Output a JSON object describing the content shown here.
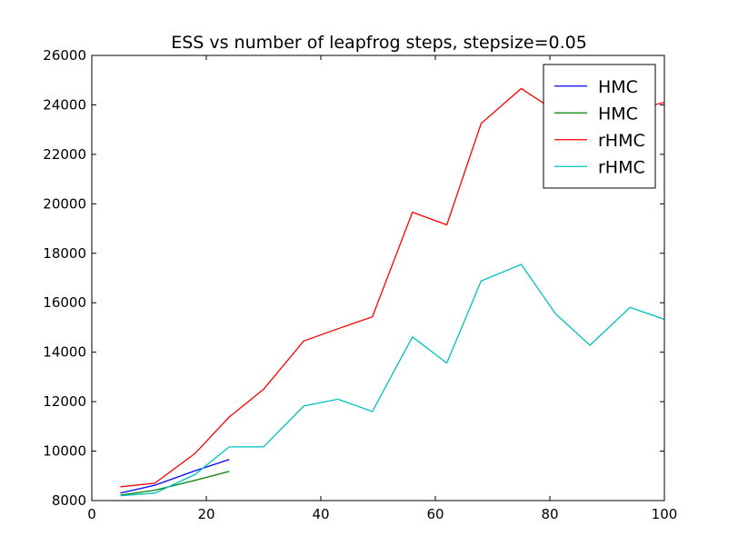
{
  "chart_data": {
    "type": "line",
    "title": "ESS vs number of leapfrog steps, stepsize=0.05",
    "xlabel": "",
    "ylabel": "",
    "xlim": [
      0,
      100
    ],
    "ylim": [
      8000,
      26000
    ],
    "xticks": [
      0,
      20,
      40,
      60,
      80,
      100
    ],
    "yticks": [
      8000,
      10000,
      12000,
      14000,
      16000,
      18000,
      20000,
      22000,
      24000,
      26000
    ],
    "grid": false,
    "legend_position": "top-right",
    "series": [
      {
        "name": "HMC",
        "color": "#0000ff",
        "x": [
          5,
          11,
          18,
          24
        ],
        "y": [
          8300,
          8620,
          9200,
          9660
        ]
      },
      {
        "name": "HMC",
        "color": "#008000",
        "x": [
          5,
          11,
          18,
          24
        ],
        "y": [
          8220,
          8420,
          8820,
          9180
        ]
      },
      {
        "name": "rHMC",
        "color": "#ff0000",
        "x": [
          5,
          11,
          18,
          24,
          30,
          37,
          43,
          49,
          56,
          62,
          68,
          75,
          81,
          87,
          94,
          100
        ],
        "y": [
          8560,
          8700,
          9900,
          11380,
          12500,
          14450,
          14950,
          15430,
          19660,
          19150,
          23250,
          24660,
          23750,
          21050,
          23770,
          24100
        ]
      },
      {
        "name": "rHMC",
        "color": "#00bfbf",
        "x": [
          5,
          11,
          18,
          24,
          30,
          37,
          43,
          49,
          56,
          62,
          68,
          75,
          81,
          87,
          94,
          100
        ],
        "y": [
          8200,
          8300,
          9050,
          10170,
          10170,
          11820,
          12100,
          11600,
          14620,
          13560,
          16880,
          17550,
          15550,
          14280,
          15810,
          15330
        ]
      }
    ]
  }
}
